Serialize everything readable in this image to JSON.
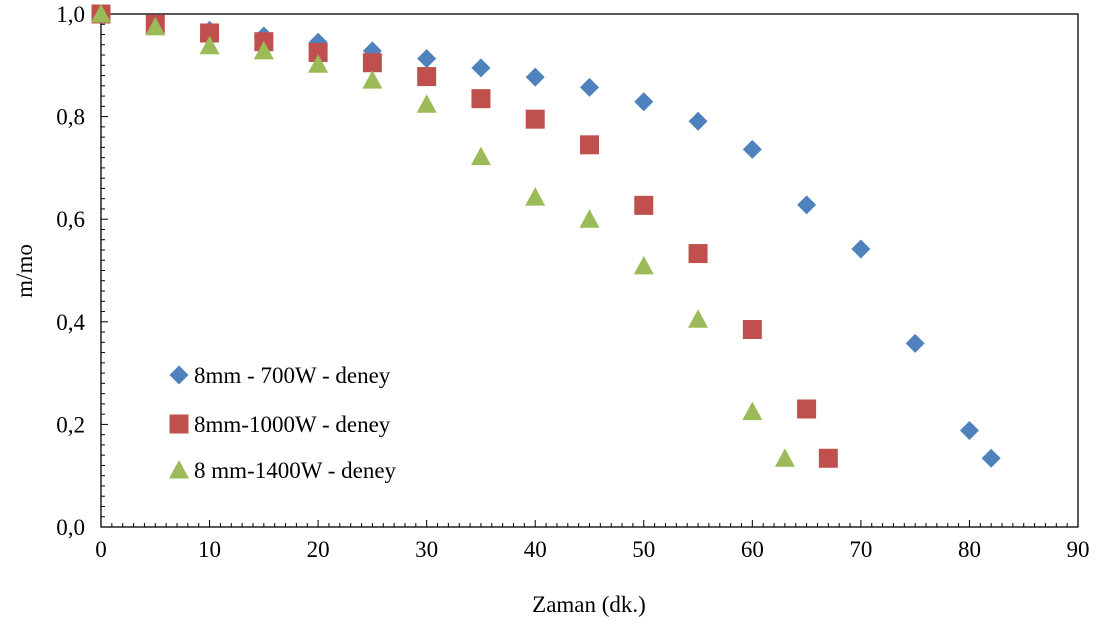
{
  "chart_data": {
    "type": "scatter",
    "title": "",
    "xlabel": "Zaman (dk.)",
    "ylabel": "m/mo",
    "xlim": [
      0,
      90
    ],
    "ylim": [
      0,
      1.0
    ],
    "x_ticks": [
      0,
      10,
      20,
      30,
      40,
      50,
      60,
      70,
      80,
      90
    ],
    "x_tick_labels": [
      "0",
      "10",
      "20",
      "30",
      "40",
      "50",
      "60",
      "70",
      "80",
      "90"
    ],
    "y_ticks": [
      0,
      0.2,
      0.4,
      0.6,
      0.8,
      1.0
    ],
    "y_tick_labels": [
      "0,0",
      "0,2",
      "0,4",
      "0,6",
      "0,8",
      "1,0"
    ],
    "grid": false,
    "legend_position": "bottom-left",
    "series": [
      {
        "name": "8mm - 700W - deney",
        "marker": "diamond",
        "color": "#4f81bd",
        "x": [
          0,
          5,
          10,
          15,
          20,
          25,
          30,
          35,
          40,
          45,
          50,
          55,
          60,
          65,
          70,
          75,
          80,
          82
        ],
        "y": [
          1.0,
          0.982,
          0.968,
          0.957,
          0.945,
          0.928,
          0.913,
          0.895,
          0.877,
          0.857,
          0.829,
          0.791,
          0.736,
          0.628,
          0.542,
          0.358,
          0.188,
          0.134
        ]
      },
      {
        "name": "8mm-1000W - deney",
        "marker": "square",
        "color": "#c0504d",
        "x": [
          0,
          5,
          10,
          15,
          20,
          25,
          30,
          35,
          40,
          45,
          50,
          55,
          60,
          65,
          67
        ],
        "y": [
          1.0,
          0.98,
          0.963,
          0.946,
          0.925,
          0.905,
          0.878,
          0.835,
          0.795,
          0.745,
          0.627,
          0.533,
          0.385,
          0.23,
          0.134
        ]
      },
      {
        "name": "8 mm-1400W - deney",
        "marker": "triangle",
        "color": "#9bbb59",
        "x": [
          0,
          5,
          10,
          15,
          20,
          25,
          30,
          35,
          40,
          45,
          50,
          55,
          60,
          63
        ],
        "y": [
          1.0,
          0.975,
          0.938,
          0.928,
          0.902,
          0.871,
          0.824,
          0.722,
          0.643,
          0.6,
          0.509,
          0.405,
          0.225,
          0.134
        ]
      }
    ]
  }
}
